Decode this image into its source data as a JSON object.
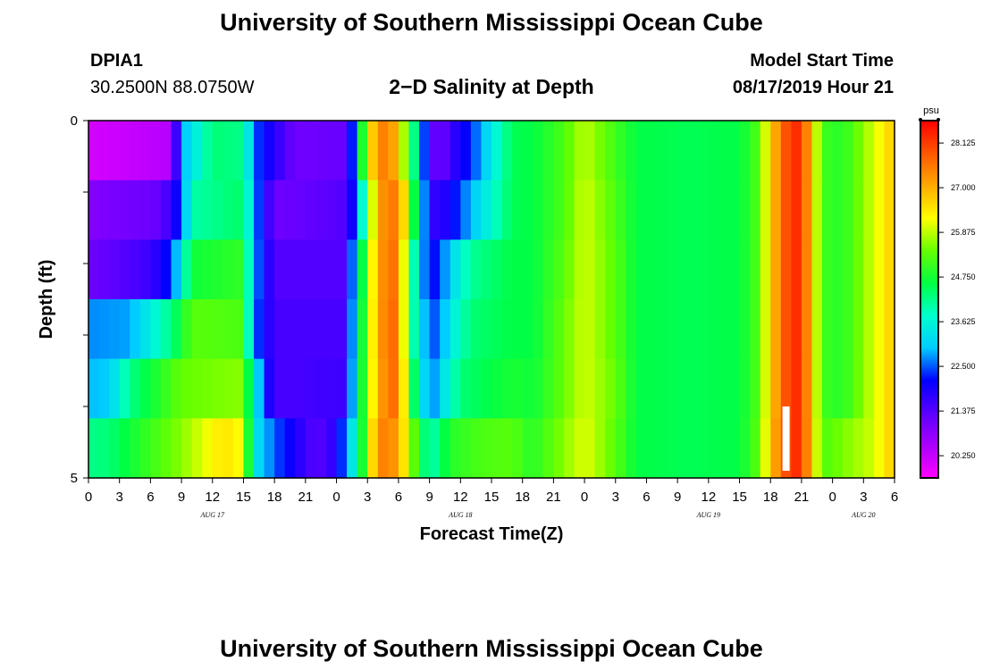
{
  "header": {
    "title": "University of Southern Mississippi Ocean Cube",
    "station_id": "DPIA1",
    "coordinates": "30.2500N 88.0750W",
    "plot_title": "2−D Salinity at Depth",
    "model_label": "Model Start Time",
    "model_time": "08/17/2019 Hour 21"
  },
  "footer": {
    "title": "University of Southern Mississippi Ocean Cube"
  },
  "chart_data": {
    "type": "heatmap",
    "title": "2-D Salinity at Depth",
    "xlabel": "Forecast Time(Z)",
    "ylabel": "Depth (ft)",
    "ylim": [
      0,
      5
    ],
    "y_tick_labels": [
      "0",
      "5"
    ],
    "x_start_hour": 0,
    "x_end_hour": 78,
    "x_tick_labels": [
      "0",
      "3",
      "6",
      "9",
      "12",
      "15",
      "18",
      "21",
      "0",
      "3",
      "6",
      "9",
      "12",
      "15",
      "18",
      "21",
      "0",
      "3",
      "6",
      "9",
      "12",
      "15",
      "18",
      "21",
      "0",
      "3",
      "6"
    ],
    "day_labels": [
      {
        "label": "AUG 17",
        "hour": 12
      },
      {
        "label": "AUG 18",
        "hour": 36
      },
      {
        "label": "AUG 19",
        "hour": 60
      },
      {
        "label": "AUG 20",
        "hour": 75
      }
    ],
    "units": "psu",
    "colorbar": {
      "label": "psu",
      "min": 19.69,
      "max": 28.69,
      "ticks": [
        "28.125",
        "27.000",
        "25.875",
        "24.750",
        "23.625",
        "22.500",
        "21.375",
        "20.250"
      ],
      "colors": [
        "#ff00ff",
        "#aa00ff",
        "#5a00ff",
        "#0000ff",
        "#00ccff",
        "#00ffcc",
        "#00ff44",
        "#66ff00",
        "#ffff00",
        "#ffaa00",
        "#ff5500",
        "#ff0000"
      ]
    },
    "depth_rows_ft": [
      0,
      1,
      2,
      3,
      4,
      5
    ],
    "series": [
      {
        "name": "depth 0.0 ft",
        "key_hours": [
          0,
          8,
          9,
          12,
          15,
          16,
          20,
          25,
          26,
          27,
          29,
          31,
          33,
          34,
          35,
          37,
          41,
          43,
          46,
          48,
          51,
          53,
          58,
          63,
          65,
          66,
          68,
          69,
          71,
          73,
          76,
          78
        ],
        "key_values": [
          20.1,
          20.4,
          22.8,
          24.3,
          24.2,
          22.5,
          21.1,
          21.2,
          23.3,
          26.4,
          27.8,
          25.1,
          21.5,
          21.0,
          21.6,
          22.3,
          24.5,
          24.6,
          25.2,
          25.9,
          25.1,
          24.6,
          24.5,
          24.6,
          25.3,
          26.7,
          28.3,
          28.2,
          25.1,
          24.9,
          26.0,
          26.8
        ]
      },
      {
        "name": "depth 1.0 ft",
        "key_hours": [
          0,
          7,
          9,
          10,
          15,
          16,
          18,
          25,
          26,
          28,
          30,
          31,
          33,
          34,
          35,
          37,
          41,
          43,
          46,
          48,
          51,
          53,
          58,
          63,
          65,
          66,
          68,
          69,
          71,
          73,
          76,
          78
        ],
        "key_values": [
          20.9,
          21.2,
          22.3,
          24.0,
          24.4,
          22.8,
          21.1,
          21.4,
          22.6,
          27.2,
          27.6,
          25.6,
          21.7,
          21.7,
          22.0,
          22.9,
          24.5,
          24.6,
          25.2,
          26.0,
          25.2,
          24.6,
          24.5,
          24.6,
          25.3,
          26.7,
          28.3,
          28.2,
          25.1,
          24.9,
          26.0,
          26.8
        ]
      },
      {
        "name": "depth 2.0 ft",
        "key_hours": [
          0,
          6,
          8,
          10,
          15,
          16,
          18,
          25,
          26,
          28,
          30,
          31,
          33,
          34,
          35,
          37,
          41,
          43,
          46,
          48,
          51,
          53,
          58,
          63,
          65,
          66,
          68,
          69,
          71,
          73,
          76,
          78
        ],
        "key_values": [
          21.1,
          21.6,
          22.3,
          24.7,
          25.0,
          22.8,
          21.4,
          21.4,
          23.7,
          27.2,
          27.7,
          24.6,
          22.0,
          22.4,
          23.1,
          24.1,
          24.6,
          24.6,
          25.3,
          26.0,
          25.3,
          24.6,
          24.5,
          24.6,
          25.3,
          26.7,
          28.3,
          28.2,
          25.1,
          24.9,
          26.0,
          26.8
        ]
      },
      {
        "name": "depth 3.0 ft",
        "key_hours": [
          0,
          4,
          8,
          10,
          15,
          16,
          18,
          25,
          26,
          28,
          30,
          31,
          33,
          34,
          35,
          37,
          41,
          43,
          46,
          48,
          51,
          53,
          58,
          63,
          65,
          66,
          68,
          69,
          71,
          73,
          76,
          78
        ],
        "key_values": [
          22.7,
          22.8,
          24.2,
          25.3,
          25.2,
          22.6,
          21.5,
          21.5,
          23.9,
          27.2,
          27.8,
          24.5,
          22.4,
          22.6,
          23.4,
          24.3,
          24.6,
          24.6,
          25.4,
          26.0,
          25.3,
          24.6,
          24.5,
          24.6,
          25.3,
          26.7,
          28.3,
          28.2,
          25.1,
          24.9,
          26.0,
          26.8
        ]
      },
      {
        "name": "depth 4.0 ft",
        "key_hours": [
          0,
          2,
          4,
          9,
          15,
          16,
          17,
          18,
          25,
          26,
          28,
          30,
          31,
          33,
          34,
          36,
          41,
          43,
          46,
          48,
          51,
          53,
          58,
          63,
          65,
          66,
          68,
          69,
          71,
          73,
          76,
          78
        ],
        "key_values": [
          22.9,
          23.0,
          24.2,
          25.4,
          25.6,
          23.6,
          22.3,
          21.5,
          21.6,
          24.0,
          27.1,
          27.8,
          25.0,
          22.5,
          23.1,
          24.3,
          24.8,
          24.7,
          25.4,
          26.0,
          25.4,
          24.6,
          24.5,
          24.6,
          25.3,
          26.7,
          28.3,
          28.2,
          25.1,
          24.9,
          26.0,
          26.8
        ]
      },
      {
        "name": "depth 5.0 ft",
        "key_hours": [
          0,
          2,
          5,
          9,
          13,
          15,
          16,
          18,
          22,
          24,
          26,
          28,
          30,
          31,
          33,
          35,
          38,
          41,
          43,
          46,
          48,
          51,
          53,
          58,
          63,
          65,
          66,
          68,
          69,
          71,
          76,
          78
        ],
        "key_values": [
          24.2,
          24.3,
          24.9,
          25.6,
          26.5,
          26.2,
          23.4,
          22.5,
          21.3,
          21.8,
          23.9,
          27.5,
          27.2,
          25.8,
          23.8,
          24.9,
          25.2,
          25.3,
          24.9,
          25.6,
          26.1,
          25.3,
          24.6,
          24.5,
          24.6,
          25.4,
          26.8,
          28.3,
          28.2,
          25.2,
          26.0,
          26.8
        ]
      }
    ],
    "annotations": [
      {
        "type": "white-bar",
        "hour": 67.5,
        "depth_ft": 4.5
      }
    ]
  }
}
